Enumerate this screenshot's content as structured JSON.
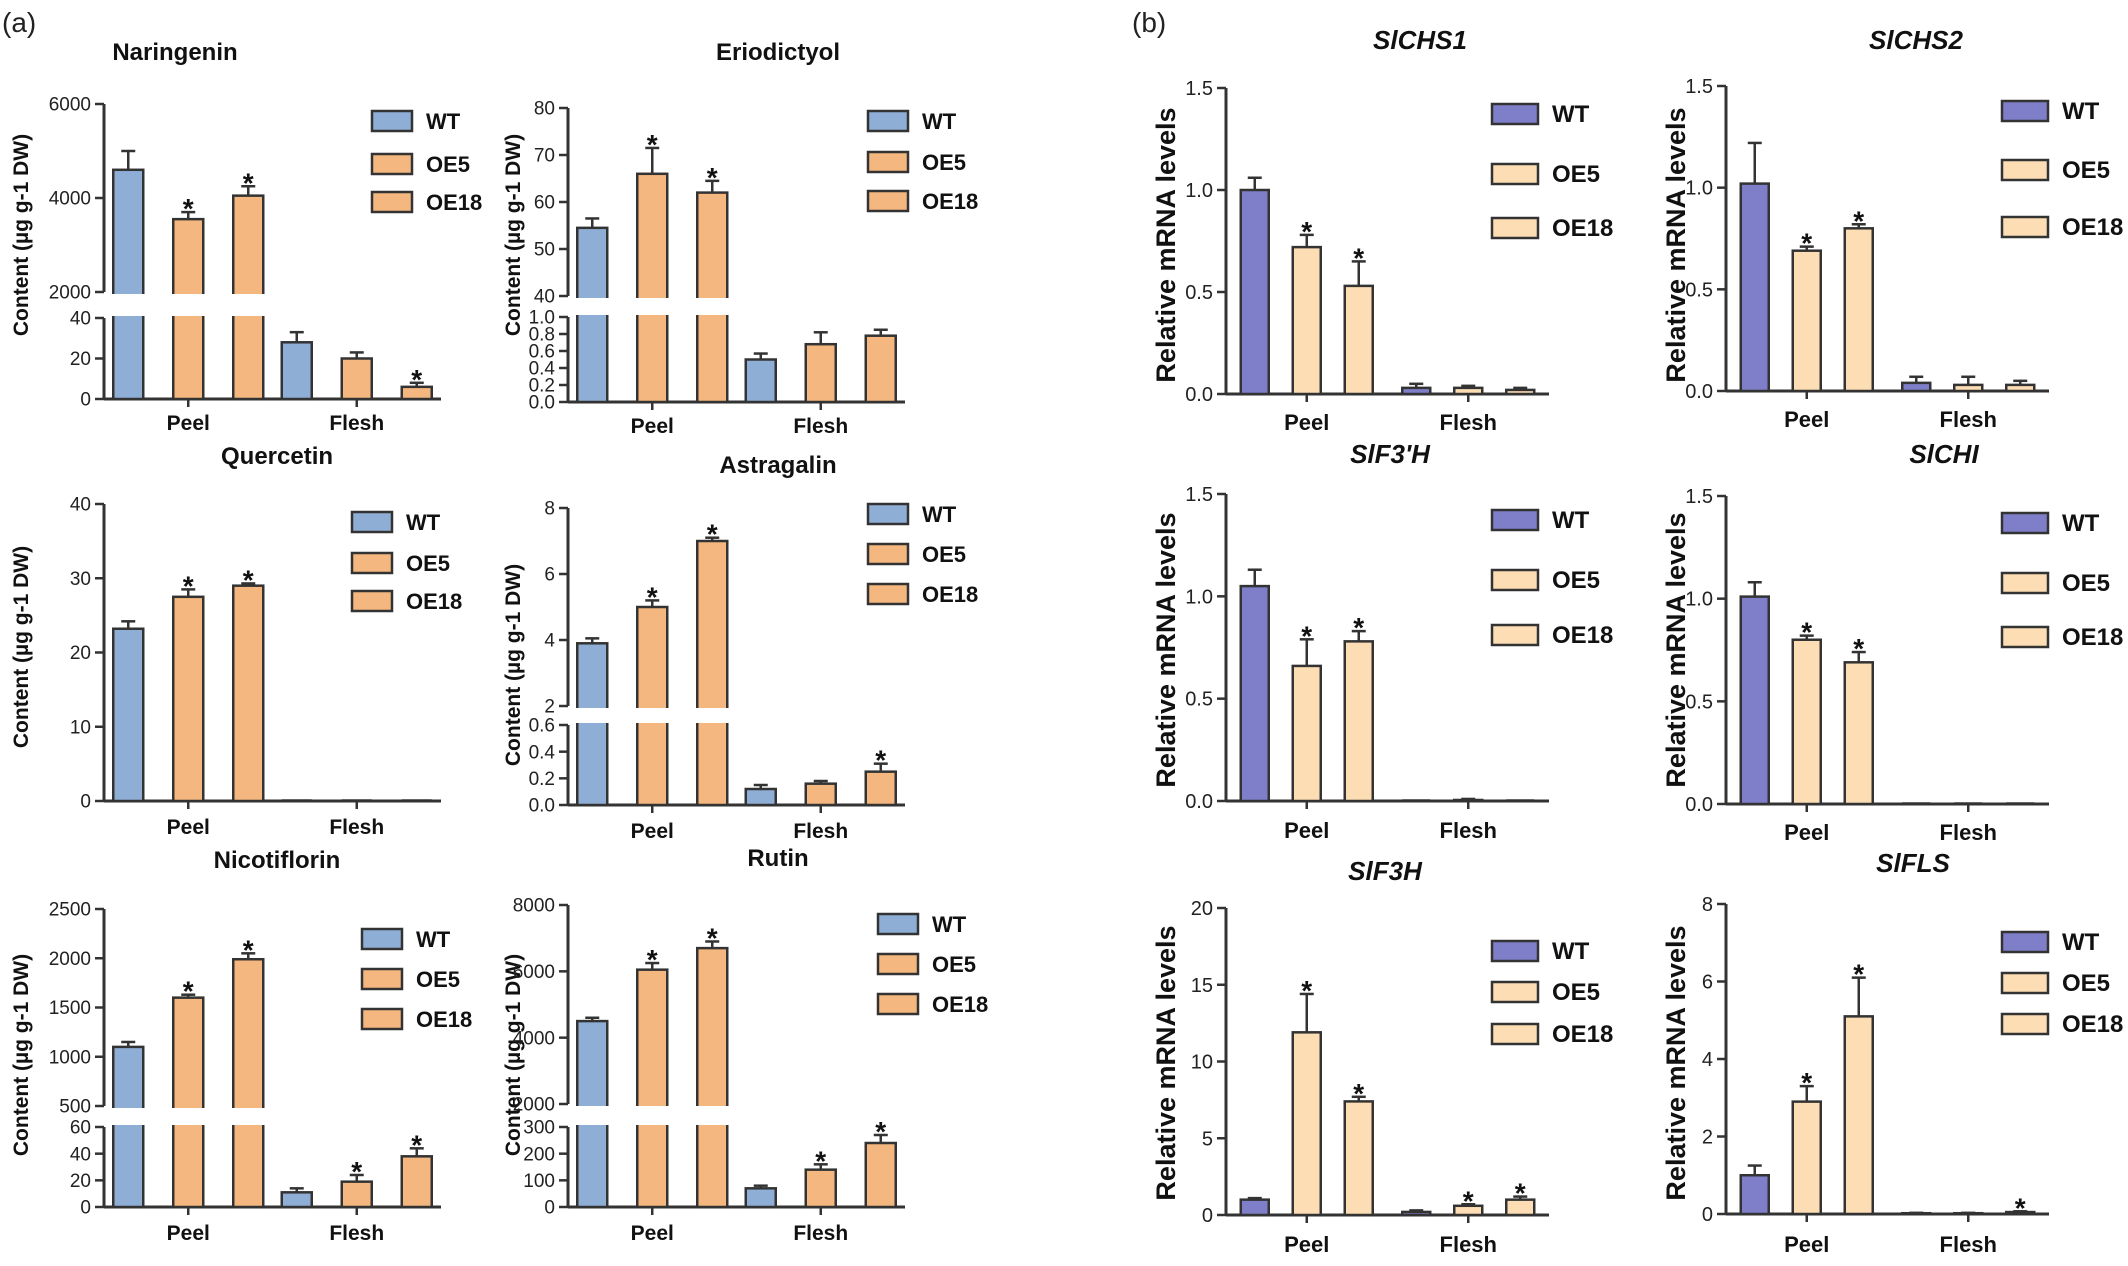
{
  "panel_labels": [
    "(a)",
    "(b)"
  ],
  "colors": {
    "wt_a": "#8FAED6",
    "oe_a": "#F4B77F",
    "wt_b": "#7F7FC9",
    "oe_b": "#FCDDB4",
    "stroke": "#333333"
  },
  "chart_data": [
    {
      "type": "bar",
      "title": "Naringenin",
      "title_italic": false,
      "ylabel": "Content (µg g-1 DW)",
      "categories": [
        "Peel",
        "Flesh"
      ],
      "legend": [
        "WT",
        "OE5",
        "OE18"
      ],
      "broken_axis": true,
      "upper": {
        "range": [
          2000,
          6000
        ],
        "ticks": [
          2000,
          4000,
          6000
        ]
      },
      "lower": {
        "range": [
          0,
          40
        ],
        "ticks": [
          0,
          20,
          40
        ]
      },
      "series": [
        {
          "name": "WT",
          "values": [
            4600,
            28
          ],
          "errors": [
            400,
            5
          ],
          "star": [
            false,
            false
          ]
        },
        {
          "name": "OE5",
          "values": [
            3550,
            20
          ],
          "errors": [
            150,
            3
          ],
          "star": [
            true,
            false
          ]
        },
        {
          "name": "OE18",
          "values": [
            4050,
            6
          ],
          "errors": [
            200,
            2
          ],
          "star": [
            true,
            true
          ]
        }
      ]
    },
    {
      "type": "bar",
      "title": "Eriodictyol",
      "title_italic": false,
      "ylabel": "Content (µg g-1 DW)",
      "categories": [
        "Peel",
        "Flesh"
      ],
      "legend": [
        "WT",
        "OE5",
        "OE18"
      ],
      "broken_axis": true,
      "upper": {
        "range": [
          40,
          80
        ],
        "ticks": [
          40,
          50,
          60,
          70,
          80
        ]
      },
      "lower": {
        "range": [
          0,
          1.0
        ],
        "ticks": [
          0.0,
          0.2,
          0.4,
          0.6,
          0.8,
          1.0
        ]
      },
      "series": [
        {
          "name": "WT",
          "values": [
            54.5,
            0.5
          ],
          "errors": [
            2,
            0.07
          ],
          "star": [
            false,
            false
          ]
        },
        {
          "name": "OE5",
          "values": [
            66,
            0.68
          ],
          "errors": [
            5.5,
            0.14
          ],
          "star": [
            true,
            false
          ]
        },
        {
          "name": "OE18",
          "values": [
            62,
            0.78
          ],
          "errors": [
            2.5,
            0.07
          ],
          "star": [
            true,
            false
          ]
        }
      ]
    },
    {
      "type": "bar",
      "title": "Quercetin",
      "title_italic": false,
      "ylabel": "Content (µg g-1 DW)",
      "categories": [
        "Peel",
        "Flesh"
      ],
      "legend": [
        "WT",
        "OE5",
        "OE18"
      ],
      "broken_axis": false,
      "single": {
        "range": [
          0,
          40
        ],
        "ticks": [
          0,
          10,
          20,
          30,
          40
        ]
      },
      "series": [
        {
          "name": "WT",
          "values": [
            23.2,
            0
          ],
          "errors": [
            1,
            0
          ],
          "star": [
            false,
            false
          ]
        },
        {
          "name": "OE5",
          "values": [
            27.5,
            0
          ],
          "errors": [
            1,
            0
          ],
          "star": [
            true,
            false
          ]
        },
        {
          "name": "OE18",
          "values": [
            29,
            0
          ],
          "errors": [
            0.3,
            0
          ],
          "star": [
            true,
            false
          ]
        }
      ]
    },
    {
      "type": "bar",
      "title": "Astragalin",
      "title_italic": false,
      "ylabel": "Content (µg g-1 DW)",
      "categories": [
        "Peel",
        "Flesh"
      ],
      "legend": [
        "WT",
        "OE5",
        "OE18"
      ],
      "broken_axis": true,
      "upper": {
        "range": [
          2,
          8
        ],
        "ticks": [
          2,
          4,
          6,
          8
        ]
      },
      "lower": {
        "range": [
          0,
          0.6
        ],
        "ticks": [
          0.0,
          0.2,
          0.4,
          0.6
        ]
      },
      "series": [
        {
          "name": "WT",
          "values": [
            3.9,
            0.12
          ],
          "errors": [
            0.15,
            0.03
          ],
          "star": [
            false,
            false
          ]
        },
        {
          "name": "OE5",
          "values": [
            5.0,
            0.16
          ],
          "errors": [
            0.2,
            0.02
          ],
          "star": [
            true,
            false
          ]
        },
        {
          "name": "OE18",
          "values": [
            7.0,
            0.25
          ],
          "errors": [
            0.1,
            0.06
          ],
          "star": [
            true,
            true
          ]
        }
      ]
    },
    {
      "type": "bar",
      "title": "Nicotiflorin",
      "title_italic": false,
      "ylabel": "Content (µg g-1 DW)",
      "categories": [
        "Peel",
        "Flesh"
      ],
      "legend": [
        "WT",
        "OE5",
        "OE18"
      ],
      "broken_axis": true,
      "upper": {
        "range": [
          500,
          2500
        ],
        "ticks": [
          500,
          1000,
          1500,
          2000,
          2500
        ]
      },
      "lower": {
        "range": [
          0,
          60
        ],
        "ticks": [
          0,
          20,
          40,
          60
        ]
      },
      "series": [
        {
          "name": "WT",
          "values": [
            1100,
            11
          ],
          "errors": [
            50,
            3
          ],
          "star": [
            false,
            false
          ]
        },
        {
          "name": "OE5",
          "values": [
            1600,
            19
          ],
          "errors": [
            30,
            5
          ],
          "star": [
            true,
            true
          ]
        },
        {
          "name": "OE18",
          "values": [
            1990,
            38
          ],
          "errors": [
            60,
            6
          ],
          "star": [
            true,
            true
          ]
        }
      ]
    },
    {
      "type": "bar",
      "title": "Rutin",
      "title_italic": false,
      "ylabel": "Content (µg g-1 DW)",
      "categories": [
        "Peel",
        "Flesh"
      ],
      "legend": [
        "WT",
        "OE5",
        "OE18"
      ],
      "broken_axis": true,
      "upper": {
        "range": [
          2000,
          8000
        ],
        "ticks": [
          2000,
          4000,
          6000,
          8000
        ]
      },
      "lower": {
        "range": [
          0,
          300
        ],
        "ticks": [
          0,
          100,
          200,
          300
        ]
      },
      "series": [
        {
          "name": "WT",
          "values": [
            4500,
            70
          ],
          "errors": [
            100,
            10
          ],
          "star": [
            false,
            false
          ]
        },
        {
          "name": "OE5",
          "values": [
            6050,
            140
          ],
          "errors": [
            200,
            20
          ],
          "star": [
            true,
            true
          ]
        },
        {
          "name": "OE18",
          "values": [
            6700,
            240
          ],
          "errors": [
            200,
            30
          ],
          "star": [
            true,
            true
          ]
        }
      ]
    },
    {
      "type": "bar",
      "title": "SlCHS1",
      "title_italic": true,
      "ylabel": "Relative mRNA levels",
      "categories": [
        "Peel",
        "Flesh"
      ],
      "legend": [
        "WT",
        "OE5",
        "OE18"
      ],
      "broken_axis": false,
      "single": {
        "range": [
          0,
          1.5
        ],
        "ticks": [
          0.0,
          0.5,
          1.0,
          1.5
        ]
      },
      "series": [
        {
          "name": "WT",
          "values": [
            1.0,
            0.03
          ],
          "errors": [
            0.06,
            0.02
          ],
          "star": [
            false,
            false
          ]
        },
        {
          "name": "OE5",
          "values": [
            0.72,
            0.03
          ],
          "errors": [
            0.06,
            0.01
          ],
          "star": [
            true,
            false
          ]
        },
        {
          "name": "OE18",
          "values": [
            0.53,
            0.02
          ],
          "errors": [
            0.12,
            0.01
          ],
          "star": [
            true,
            false
          ]
        }
      ]
    },
    {
      "type": "bar",
      "title": "SlCHS2",
      "title_italic": true,
      "ylabel": "Relative mRNA levels",
      "categories": [
        "Peel",
        "Flesh"
      ],
      "legend": [
        "WT",
        "OE5",
        "OE18"
      ],
      "broken_axis": false,
      "single": {
        "range": [
          0,
          1.5
        ],
        "ticks": [
          0.0,
          0.5,
          1.0,
          1.5
        ]
      },
      "series": [
        {
          "name": "WT",
          "values": [
            1.02,
            0.04
          ],
          "errors": [
            0.2,
            0.03
          ],
          "star": [
            false,
            false
          ]
        },
        {
          "name": "OE5",
          "values": [
            0.69,
            0.03
          ],
          "errors": [
            0.02,
            0.04
          ],
          "star": [
            true,
            false
          ]
        },
        {
          "name": "OE18",
          "values": [
            0.8,
            0.03
          ],
          "errors": [
            0.02,
            0.02
          ],
          "star": [
            true,
            false
          ]
        }
      ]
    },
    {
      "type": "bar",
      "title": "SlF3'H",
      "title_italic": true,
      "ylabel": "Relative mRNA levels",
      "categories": [
        "Peel",
        "Flesh"
      ],
      "legend": [
        "WT",
        "OE5",
        "OE18"
      ],
      "broken_axis": false,
      "single": {
        "range": [
          0,
          1.5
        ],
        "ticks": [
          0.0,
          0.5,
          1.0,
          1.5
        ]
      },
      "series": [
        {
          "name": "WT",
          "values": [
            1.05,
            0
          ],
          "errors": [
            0.08,
            0
          ],
          "star": [
            false,
            false
          ]
        },
        {
          "name": "OE5",
          "values": [
            0.66,
            0.005
          ],
          "errors": [
            0.13,
            0.005
          ],
          "star": [
            true,
            false
          ]
        },
        {
          "name": "OE18",
          "values": [
            0.78,
            0
          ],
          "errors": [
            0.05,
            0
          ],
          "star": [
            true,
            false
          ]
        }
      ]
    },
    {
      "type": "bar",
      "title": "SlCHI",
      "title_italic": true,
      "ylabel": "Relative mRNA levels",
      "categories": [
        "Peel",
        "Flesh"
      ],
      "legend": [
        "WT",
        "OE5",
        "OE18"
      ],
      "broken_axis": false,
      "single": {
        "range": [
          0,
          1.5
        ],
        "ticks": [
          0.0,
          0.5,
          1.0,
          1.5
        ]
      },
      "series": [
        {
          "name": "WT",
          "values": [
            1.01,
            0
          ],
          "errors": [
            0.07,
            0
          ],
          "star": [
            false,
            false
          ]
        },
        {
          "name": "OE5",
          "values": [
            0.8,
            0
          ],
          "errors": [
            0.02,
            0
          ],
          "star": [
            true,
            false
          ]
        },
        {
          "name": "OE18",
          "values": [
            0.69,
            0
          ],
          "errors": [
            0.05,
            0
          ],
          "star": [
            true,
            false
          ]
        }
      ]
    },
    {
      "type": "bar",
      "title": "SlF3H",
      "title_italic": true,
      "ylabel": "Relative mRNA levels",
      "categories": [
        "Peel",
        "Flesh"
      ],
      "legend": [
        "WT",
        "OE5",
        "OE18"
      ],
      "broken_axis": false,
      "single": {
        "range": [
          0,
          20
        ],
        "ticks": [
          0,
          5,
          10,
          15,
          20
        ]
      },
      "series": [
        {
          "name": "WT",
          "values": [
            1.0,
            0.2
          ],
          "errors": [
            0.1,
            0.1
          ],
          "star": [
            false,
            false
          ]
        },
        {
          "name": "OE5",
          "values": [
            11.9,
            0.6
          ],
          "errors": [
            2.5,
            0.1
          ],
          "star": [
            true,
            true
          ]
        },
        {
          "name": "OE18",
          "values": [
            7.4,
            1.0
          ],
          "errors": [
            0.3,
            0.2
          ],
          "star": [
            true,
            true
          ]
        }
      ]
    },
    {
      "type": "bar",
      "title": "SlFLS",
      "title_italic": true,
      "ylabel": "Relative mRNA levels",
      "categories": [
        "Peel",
        "Flesh"
      ],
      "legend": [
        "WT",
        "OE5",
        "OE18"
      ],
      "broken_axis": false,
      "single": {
        "range": [
          0,
          8
        ],
        "ticks": [
          0,
          2,
          4,
          6,
          8
        ]
      },
      "series": [
        {
          "name": "WT",
          "values": [
            1.0,
            0.02
          ],
          "errors": [
            0.25,
            0.01
          ],
          "star": [
            false,
            false
          ]
        },
        {
          "name": "OE5",
          "values": [
            2.9,
            0.02
          ],
          "errors": [
            0.4,
            0.01
          ],
          "star": [
            true,
            false
          ]
        },
        {
          "name": "OE18",
          "values": [
            5.1,
            0.05
          ],
          "errors": [
            1.0,
            0.02
          ],
          "star": [
            true,
            true
          ]
        }
      ]
    }
  ]
}
